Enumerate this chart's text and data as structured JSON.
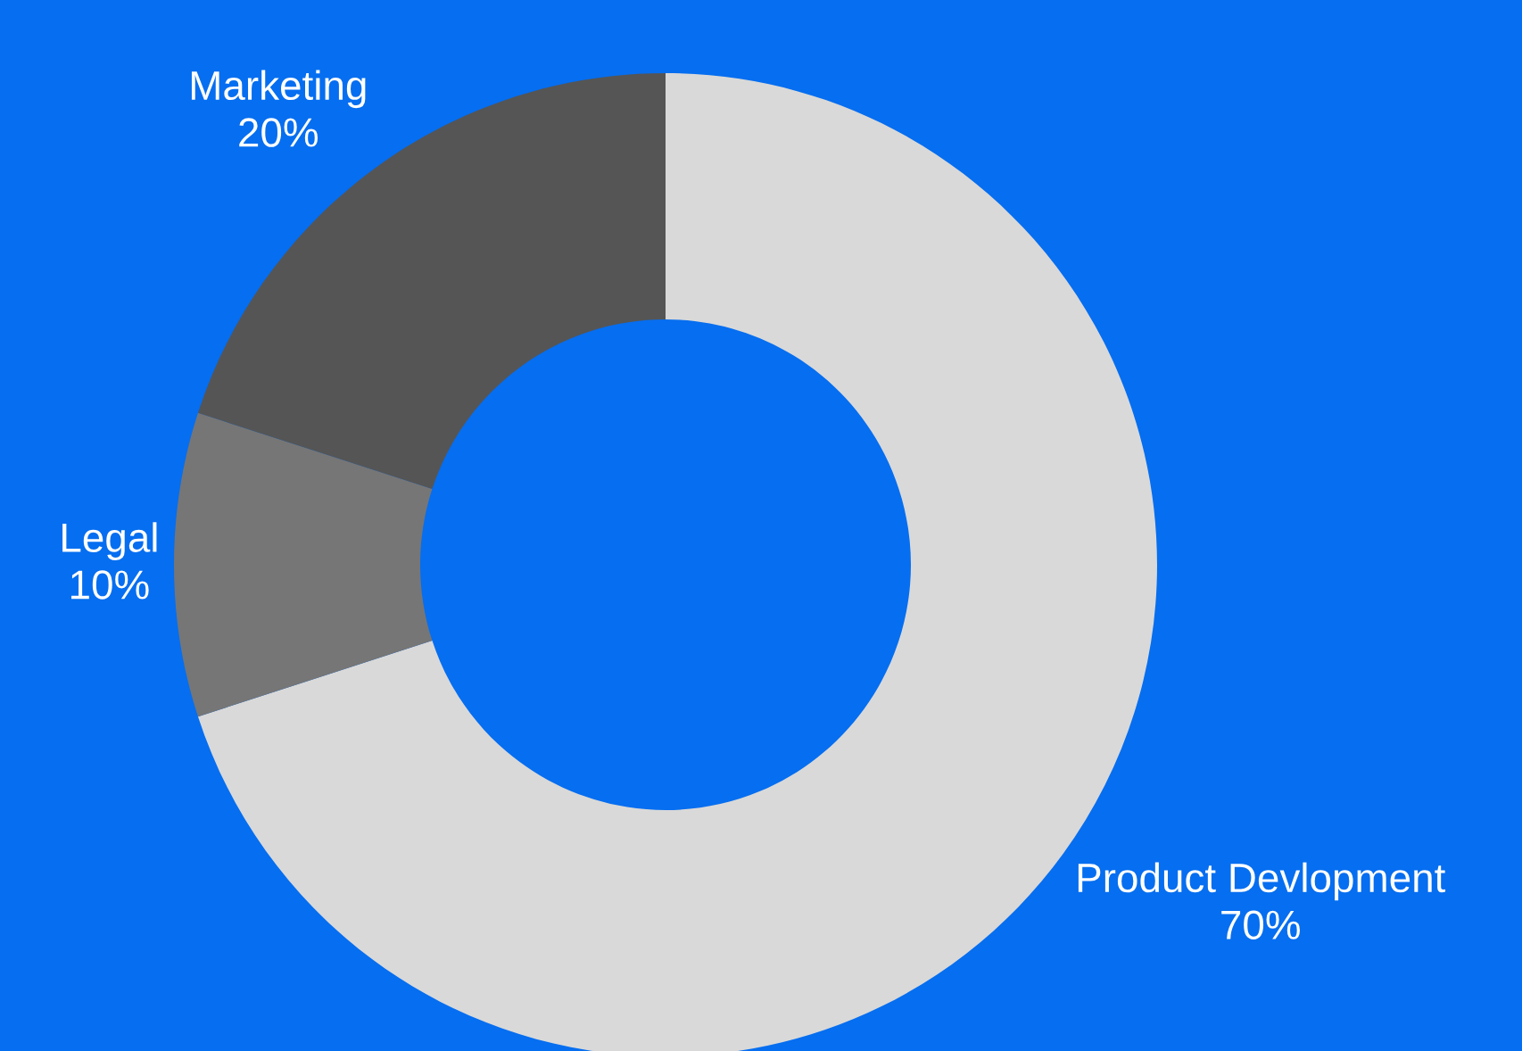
{
  "chart_data": {
    "type": "donut",
    "categories": [
      "Product Devlopment",
      "Legal",
      "Marketing"
    ],
    "values": [
      70,
      10,
      20
    ],
    "colors": [
      "#d9d9d9",
      "#767676",
      "#555555"
    ],
    "value_labels": [
      "70%",
      "10%",
      "20%"
    ]
  }
}
